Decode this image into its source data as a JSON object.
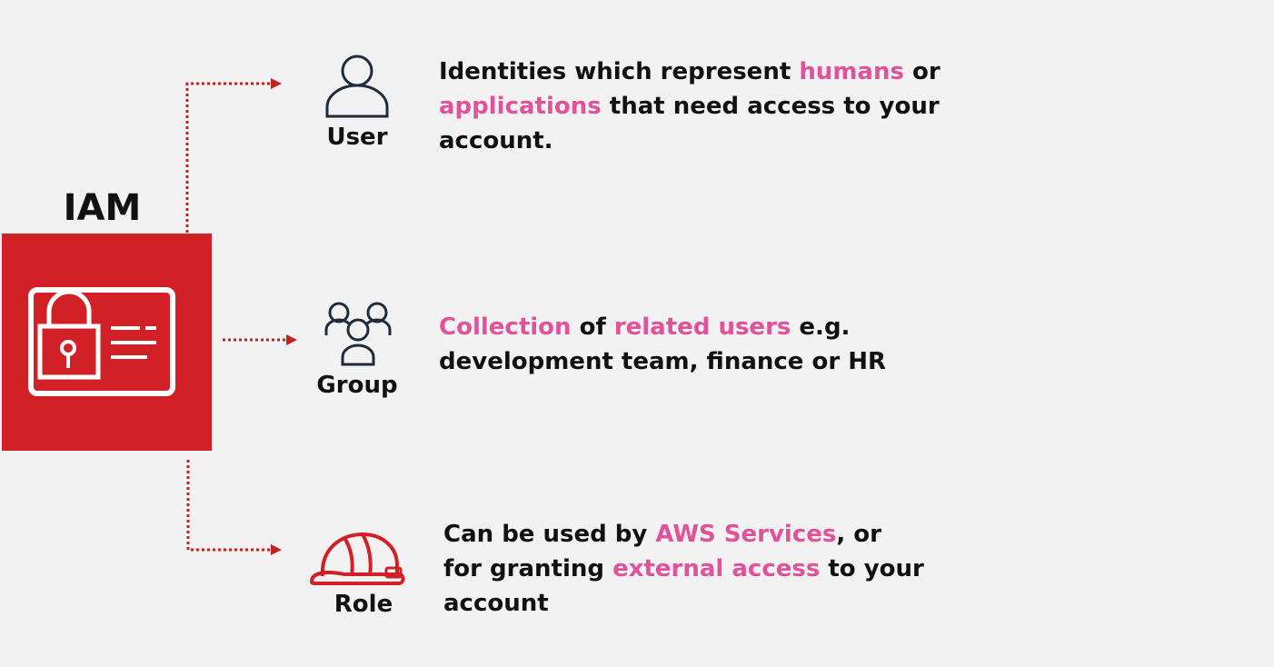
{
  "title": "IAM",
  "colors": {
    "service_red": "#d22027",
    "highlight_pink": "#e0529a",
    "arrow_red": "#c1231f"
  },
  "entities": [
    {
      "label": "User",
      "icon": "user-icon",
      "segments": [
        {
          "text": "Identities which represent ",
          "hl": false
        },
        {
          "text": "humans",
          "hl": true
        },
        {
          "text": " or ",
          "hl": false
        },
        {
          "text": "applications",
          "hl": true
        },
        {
          "text": " that need access to your account.",
          "hl": false
        }
      ]
    },
    {
      "label": "Group",
      "icon": "group-icon",
      "segments": [
        {
          "text": "Collection",
          "hl": true
        },
        {
          "text": " of ",
          "hl": false
        },
        {
          "text": "related users",
          "hl": true
        },
        {
          "text": " e.g. development team, finance or HR",
          "hl": false
        }
      ]
    },
    {
      "label": "Role",
      "icon": "hard-hat-icon",
      "segments": [
        {
          "text": "Can be used by ",
          "hl": false
        },
        {
          "text": "AWS Services",
          "hl": true
        },
        {
          "text": ", or for granting ",
          "hl": false
        },
        {
          "text": "external access",
          "hl": true
        },
        {
          "text": " to your account",
          "hl": false
        }
      ]
    }
  ]
}
